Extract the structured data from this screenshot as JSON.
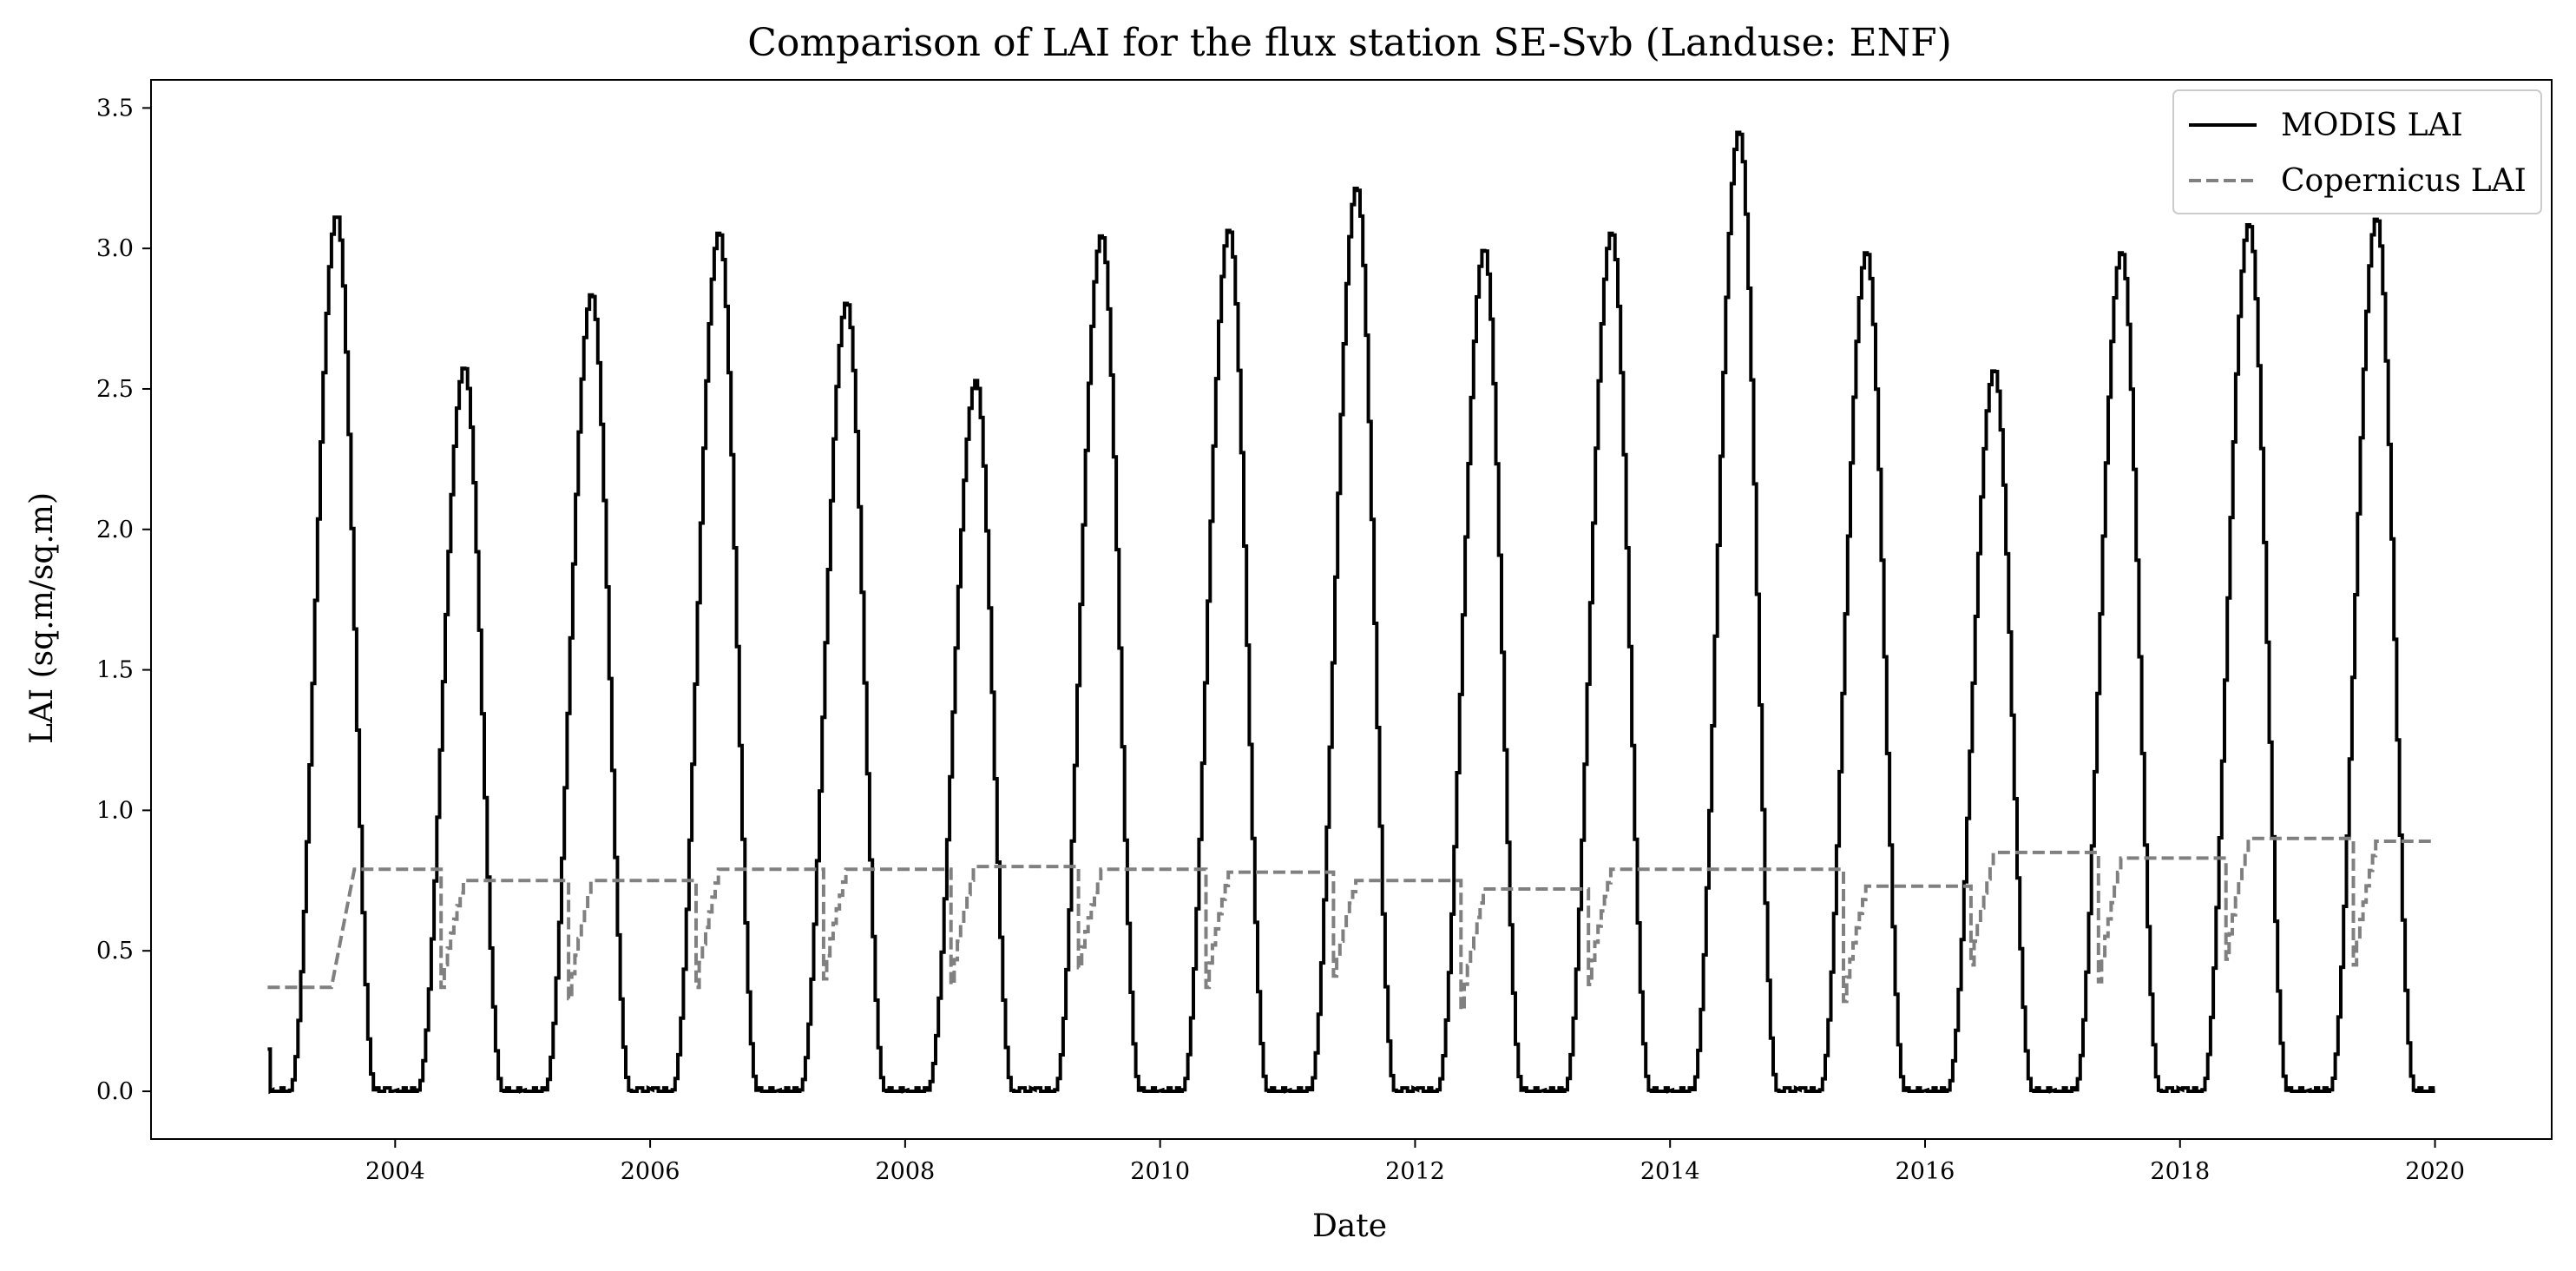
{
  "chart_data": {
    "type": "line",
    "title": "Comparison of LAI for the flux station SE-Svb (Landuse: ENF)",
    "xlabel": "Date",
    "ylabel": "LAI (sq.m/sq.m)",
    "xlim": [
      "2002-02-01",
      "2020-12-01"
    ],
    "ylim": [
      -0.17,
      3.6
    ],
    "x_ticks": [
      "2004",
      "2006",
      "2008",
      "2010",
      "2012",
      "2014",
      "2016",
      "2018",
      "2020"
    ],
    "y_ticks": [
      "0.0",
      "0.5",
      "1.0",
      "1.5",
      "2.0",
      "2.5",
      "3.0",
      "3.5"
    ],
    "grid": false,
    "legend_position": "top-right",
    "series": [
      {
        "name": "MODIS LAI",
        "color": "#000000",
        "style": "solid",
        "peaks": [
          {
            "date": "2003-07-15",
            "value": 3.12
          },
          {
            "date": "2004-07-15",
            "value": 2.58
          },
          {
            "date": "2005-07-15",
            "value": 2.84
          },
          {
            "date": "2006-07-15",
            "value": 3.06
          },
          {
            "date": "2007-07-15",
            "value": 2.81
          },
          {
            "date": "2008-07-20",
            "value": 2.53
          },
          {
            "date": "2009-07-15",
            "value": 3.05
          },
          {
            "date": "2010-07-15",
            "value": 3.07
          },
          {
            "date": "2011-07-15",
            "value": 3.22
          },
          {
            "date": "2012-07-15",
            "value": 3.0
          },
          {
            "date": "2013-07-15",
            "value": 3.06
          },
          {
            "date": "2014-07-15",
            "value": 3.42
          },
          {
            "date": "2015-07-15",
            "value": 2.99
          },
          {
            "date": "2016-07-15",
            "value": 2.57
          },
          {
            "date": "2017-07-15",
            "value": 2.99
          },
          {
            "date": "2018-07-15",
            "value": 3.09
          },
          {
            "date": "2019-07-15",
            "value": 3.11
          }
        ],
        "start": {
          "date": "2003-01-01",
          "value": 0.15
        },
        "end": {
          "date": "2020-01-01",
          "value": 0.0
        }
      },
      {
        "name": "Copernicus LAI",
        "color": "#808080",
        "style": "dashed",
        "annual_plateau": [
          {
            "year": 2003,
            "value": 0.79
          },
          {
            "year": 2004,
            "value": 0.75
          },
          {
            "year": 2005,
            "value": 0.75
          },
          {
            "year": 2006,
            "value": 0.79
          },
          {
            "year": 2007,
            "value": 0.79
          },
          {
            "year": 2008,
            "value": 0.8
          },
          {
            "year": 2009,
            "value": 0.79
          },
          {
            "year": 2010,
            "value": 0.78
          },
          {
            "year": 2011,
            "value": 0.75
          },
          {
            "year": 2012,
            "value": 0.72
          },
          {
            "year": 2013,
            "value": 0.79
          },
          {
            "year": 2014,
            "value": 0.79
          },
          {
            "year": 2015,
            "value": 0.73
          },
          {
            "year": 2016,
            "value": 0.85
          },
          {
            "year": 2017,
            "value": 0.83
          },
          {
            "year": 2018,
            "value": 0.9
          },
          {
            "year": 2019,
            "value": 0.89
          }
        ],
        "annual_minimum": [
          {
            "year": 2003,
            "value": 0.37
          },
          {
            "year": 2004,
            "value": 0.37
          },
          {
            "year": 2005,
            "value": 0.33
          },
          {
            "year": 2006,
            "value": 0.37
          },
          {
            "year": 2007,
            "value": 0.4
          },
          {
            "year": 2008,
            "value": 0.38
          },
          {
            "year": 2009,
            "value": 0.44
          },
          {
            "year": 2010,
            "value": 0.37
          },
          {
            "year": 2011,
            "value": 0.41
          },
          {
            "year": 2012,
            "value": 0.29
          },
          {
            "year": 2013,
            "value": 0.38
          },
          {
            "year": 2014,
            "value": 0.79
          },
          {
            "year": 2015,
            "value": 0.32
          },
          {
            "year": 2016,
            "value": 0.45
          },
          {
            "year": 2017,
            "value": 0.39
          },
          {
            "year": 2018,
            "value": 0.47
          },
          {
            "year": 2019,
            "value": 0.45
          }
        ],
        "start": {
          "date": "2003-01-01",
          "value": 0.37
        },
        "end": {
          "date": "2020-01-01",
          "value": 0.89
        }
      }
    ]
  }
}
